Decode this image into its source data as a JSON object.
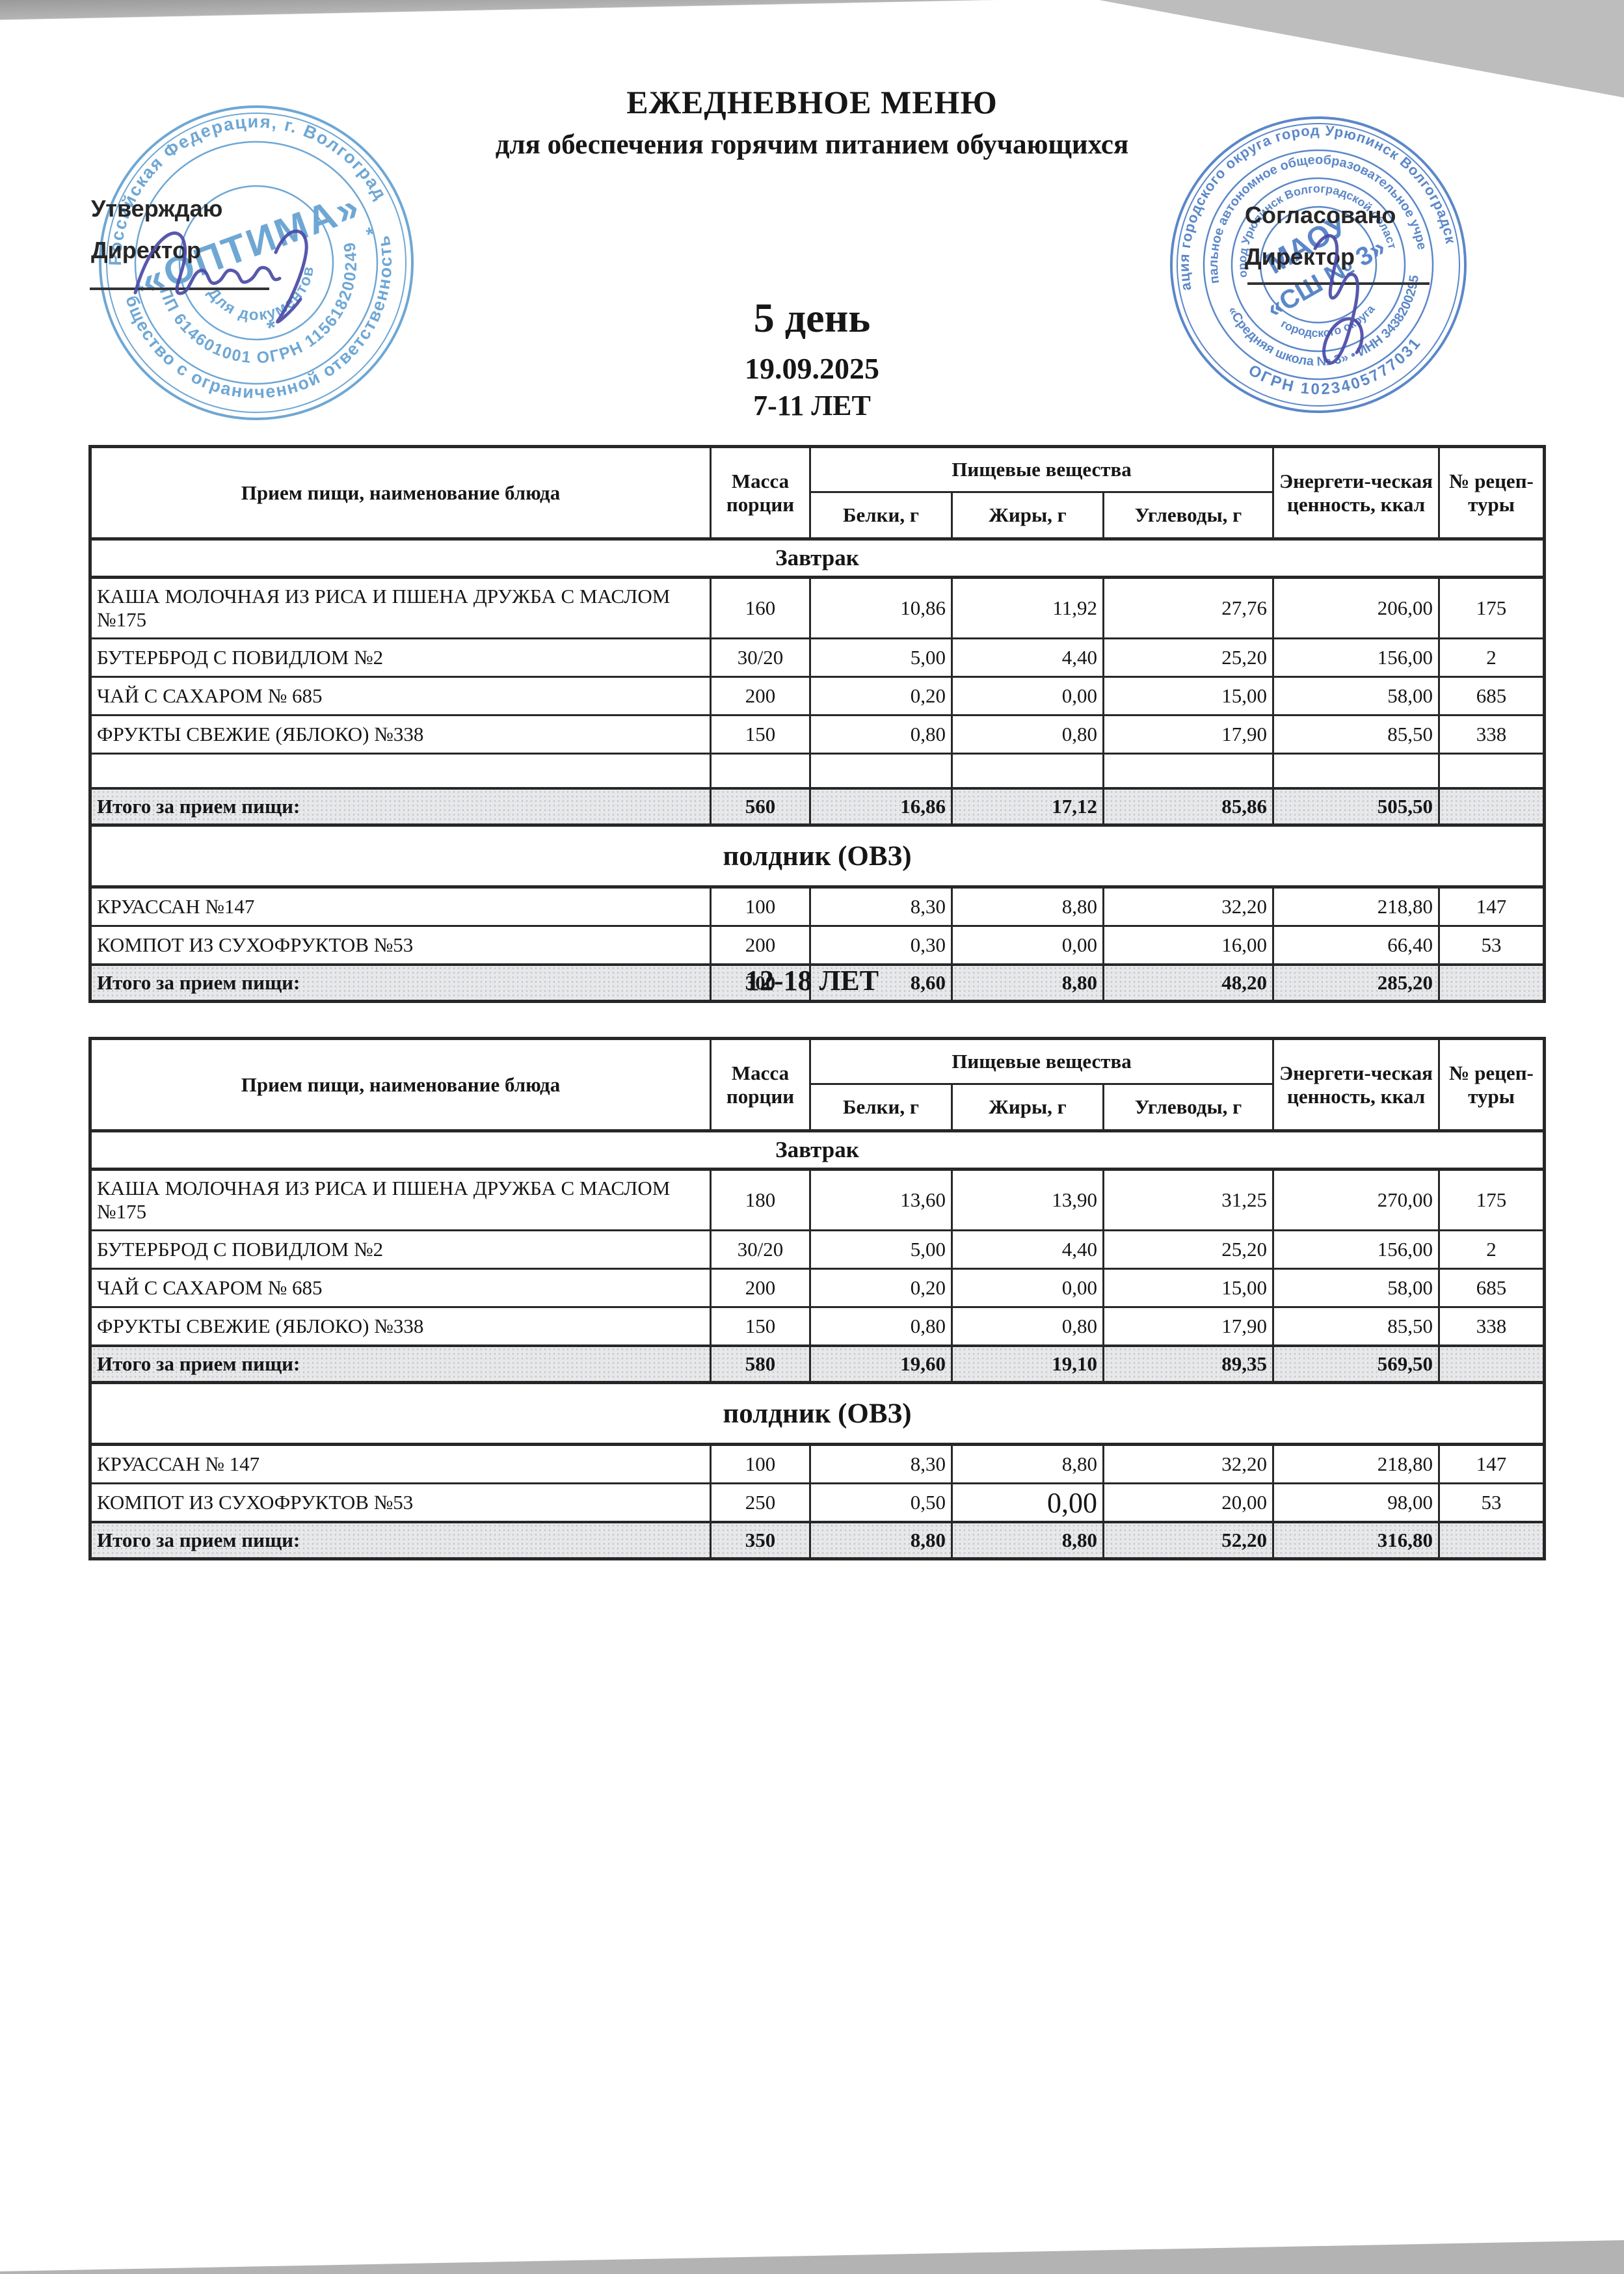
{
  "page": {
    "title": "ЕЖЕДНЕВНОЕ МЕНЮ",
    "subtitle": "для обеспечения горячим питанием обучающихся",
    "day_label": "5 день",
    "date": "19.09.2025"
  },
  "signoff": {
    "approve_label": "Утверждаю",
    "approve_role": "Директор",
    "agree_label": "Согласовано",
    "agree_role": "Директор"
  },
  "stamps": {
    "left": {
      "color": "#5b9ccf",
      "ring_top": "Российская Федерация, г. Волгоград",
      "ring_bottom": "Общество с ограниченной ответственностью",
      "reg_numbers": "КПП 614601001 ОГРН 1156182002492",
      "doc_caption": "Для документов",
      "star": "*",
      "center": "«ОПТИМА»"
    },
    "right": {
      "color": "#4577c2",
      "ring1_top": "Администрация городского округа город Урюпинск Волгоградской области",
      "ring1_bottom": "ОГРН 1023405777031",
      "ring2_top": "Муниципальное автономное общеобразовательное учреждение",
      "ring2_bottom": "«Средняя школа № 3» • ИНН 3438200295",
      "ring3_top": "город Урюпинск Волгоградской области",
      "ring3_bottom": "городского округа",
      "center_line1": "МАОУ",
      "center_line2": "«СШ № 3»"
    }
  },
  "table_header": {
    "dish": "Прием пищи, наименование блюда",
    "mass_line1": "Масса",
    "mass_line2": "порции",
    "nutrients": "Пищевые вещества",
    "protein": "Белки, г",
    "fat": "Жиры, г",
    "carbs": "Углеводы, г",
    "energy_line1": "Энергети-ческая",
    "energy_line2": "ценность, ккал",
    "recipe_line1": "№ рецеп-",
    "recipe_line2": "туры"
  },
  "groups": [
    {
      "age_title": "7-11 ЛЕТ",
      "sections": [
        {
          "name": "Завтрак",
          "kind": "breakfast",
          "rows": [
            {
              "cells": [
                "КАША  МОЛОЧНАЯ ИЗ РИСА И ПШЕНА ДРУЖБА С МАСЛОМ\n№175",
                "160",
                "10,86",
                "11,92",
                "27,76",
                "206,00",
                "175"
              ],
              "tall": true
            },
            {
              "cells": [
                "БУТЕРБРОД С ПОВИДЛОМ №2",
                "30/20",
                "5,00",
                "4,40",
                "25,20",
                "156,00",
                "2"
              ]
            },
            {
              "cells": [
                "ЧАЙ С САХАРОМ  № 685",
                "200",
                "0,20",
                "0,00",
                "15,00",
                "58,00",
                "685"
              ]
            },
            {
              "cells": [
                "ФРУКТЫ СВЕЖИЕ (ЯБЛОКО) №338",
                "150",
                "0,80",
                "0,80",
                "17,90",
                "85,50",
                "338"
              ]
            }
          ],
          "empty_row": true,
          "total": [
            "Итого за прием пищи:",
            "560",
            "16,86",
            "17,12",
            "85,86",
            "505,50",
            ""
          ]
        },
        {
          "name": "полдник (ОВЗ)",
          "kind": "snack",
          "rows": [
            {
              "cells": [
                "КРУАССАН №147",
                "100",
                "8,30",
                "8,80",
                "32,20",
                "218,80",
                "147"
              ]
            },
            {
              "cells": [
                "КОМПОТ ИЗ СУХОФРУКТОВ №53",
                "200",
                "0,30",
                "0,00",
                "16,00",
                "66,40",
                "53"
              ]
            }
          ],
          "empty_row": false,
          "total": [
            "Итого за прием пищи:",
            "300",
            "8,60",
            "8,80",
            "48,20",
            "285,20",
            ""
          ]
        }
      ]
    },
    {
      "age_title": "12-18 ЛЕТ",
      "sections": [
        {
          "name": "Завтрак",
          "kind": "breakfast",
          "rows": [
            {
              "cells": [
                "КАША  МОЛОЧНАЯ ИЗ РИСА И ПШЕНА ДРУЖБА С МАСЛОМ\n№175",
                "180",
                "13,60",
                "13,90",
                "31,25",
                "270,00",
                "175"
              ],
              "tall": true
            },
            {
              "cells": [
                "БУТЕРБРОД С ПОВИДЛОМ №2",
                "30/20",
                "5,00",
                "4,40",
                "25,20",
                "156,00",
                "2"
              ]
            },
            {
              "cells": [
                "ЧАЙ С САХАРОМ  № 685",
                "200",
                "0,20",
                "0,00",
                "15,00",
                "58,00",
                "685"
              ]
            },
            {
              "cells": [
                "ФРУКТЫ СВЕЖИЕ (ЯБЛОКО) №338",
                "150",
                "0,80",
                "0,80",
                "17,90",
                "85,50",
                "338"
              ]
            }
          ],
          "empty_row": false,
          "total": [
            "Итого за прием пищи:",
            "580",
            "19,60",
            "19,10",
            "89,35",
            "569,50",
            ""
          ]
        },
        {
          "name": "полдник (ОВЗ)",
          "kind": "snack",
          "rows": [
            {
              "cells": [
                "КРУАССАН № 147",
                "100",
                "8,30",
                "8,80",
                "32,20",
                "218,80",
                "147"
              ]
            },
            {
              "cells": [
                "КОМПОТ ИЗ СУХОФРУКТОВ №53",
                "250",
                "0,50",
                "0,00",
                "20,00",
                "98,00",
                "53"
              ],
              "big_cols": [
                3
              ]
            }
          ],
          "empty_row": false,
          "total": [
            "Итого за прием пищи:",
            "350",
            "8,80",
            "8,80",
            "52,20",
            "316,80",
            ""
          ]
        }
      ]
    }
  ]
}
